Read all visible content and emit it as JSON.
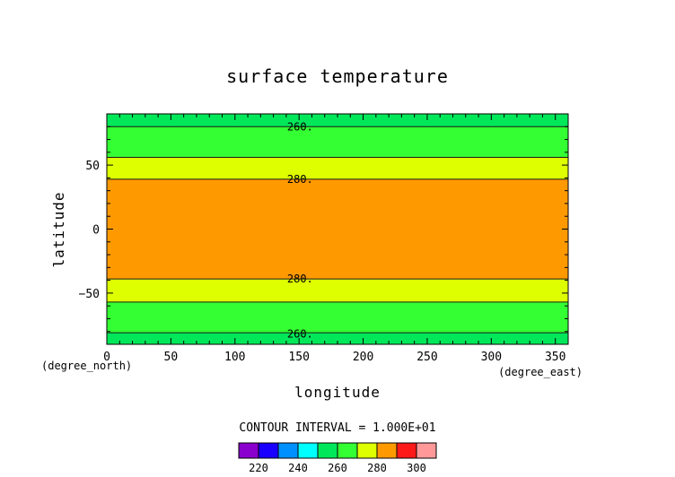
{
  "chart_data": {
    "type": "heatmap",
    "title": "surface temperature",
    "xlabel": "longitude",
    "ylabel": "latitude",
    "x_unit": "(degree_east)",
    "y_unit": "(degree_north)",
    "xlim": [
      0,
      360
    ],
    "ylim": [
      -90,
      90
    ],
    "xticks": [
      0,
      50,
      100,
      150,
      200,
      250,
      300,
      350
    ],
    "yticks": [
      -50,
      0,
      50
    ],
    "contour_interval_text": "CONTOUR INTERVAL = 1.000E+01",
    "contour_labels": [
      {
        "text": "260.",
        "lon": 120,
        "lat": 80
      },
      {
        "text": "280.",
        "lon": 120,
        "lat": 39
      },
      {
        "text": "280.",
        "lon": 120,
        "lat": -39
      },
      {
        "text": "260.",
        "lon": 120,
        "lat": -82
      }
    ],
    "contours": [
      {
        "value": 260,
        "lat": 80
      },
      {
        "value": 270,
        "lat": 56
      },
      {
        "value": 280,
        "lat": 39
      },
      {
        "value": 280,
        "lat": -39
      },
      {
        "value": 270,
        "lat": -57
      },
      {
        "value": 260,
        "lat": -81
      }
    ],
    "bands": [
      {
        "lat_min": 80,
        "lat_max": 90,
        "range": [
          250,
          260
        ],
        "color": "#00e85a"
      },
      {
        "lat_min": 56,
        "lat_max": 80,
        "range": [
          260,
          270
        ],
        "color": "#33ff33"
      },
      {
        "lat_min": 39,
        "lat_max": 56,
        "range": [
          270,
          280
        ],
        "color": "#ddff00"
      },
      {
        "lat_min": -39,
        "lat_max": 39,
        "range": [
          280,
          290
        ],
        "color": "#ff9900"
      },
      {
        "lat_min": -57,
        "lat_max": -39,
        "range": [
          270,
          280
        ],
        "color": "#ddff00"
      },
      {
        "lat_min": -81,
        "lat_max": -57,
        "range": [
          260,
          270
        ],
        "color": "#33ff33"
      },
      {
        "lat_min": -90,
        "lat_max": -81,
        "range": [
          250,
          260
        ],
        "color": "#00e85a"
      }
    ],
    "colorbar": {
      "min": 210,
      "max": 310,
      "label_values": [
        220,
        240,
        260,
        280,
        300
      ],
      "colors": [
        "#8a00cc",
        "#1a00ff",
        "#0090ff",
        "#00ffff",
        "#00e85a",
        "#33ff33",
        "#ddff00",
        "#ff9900",
        "#ff1a1a",
        "#ff9999"
      ]
    },
    "grid": false
  }
}
